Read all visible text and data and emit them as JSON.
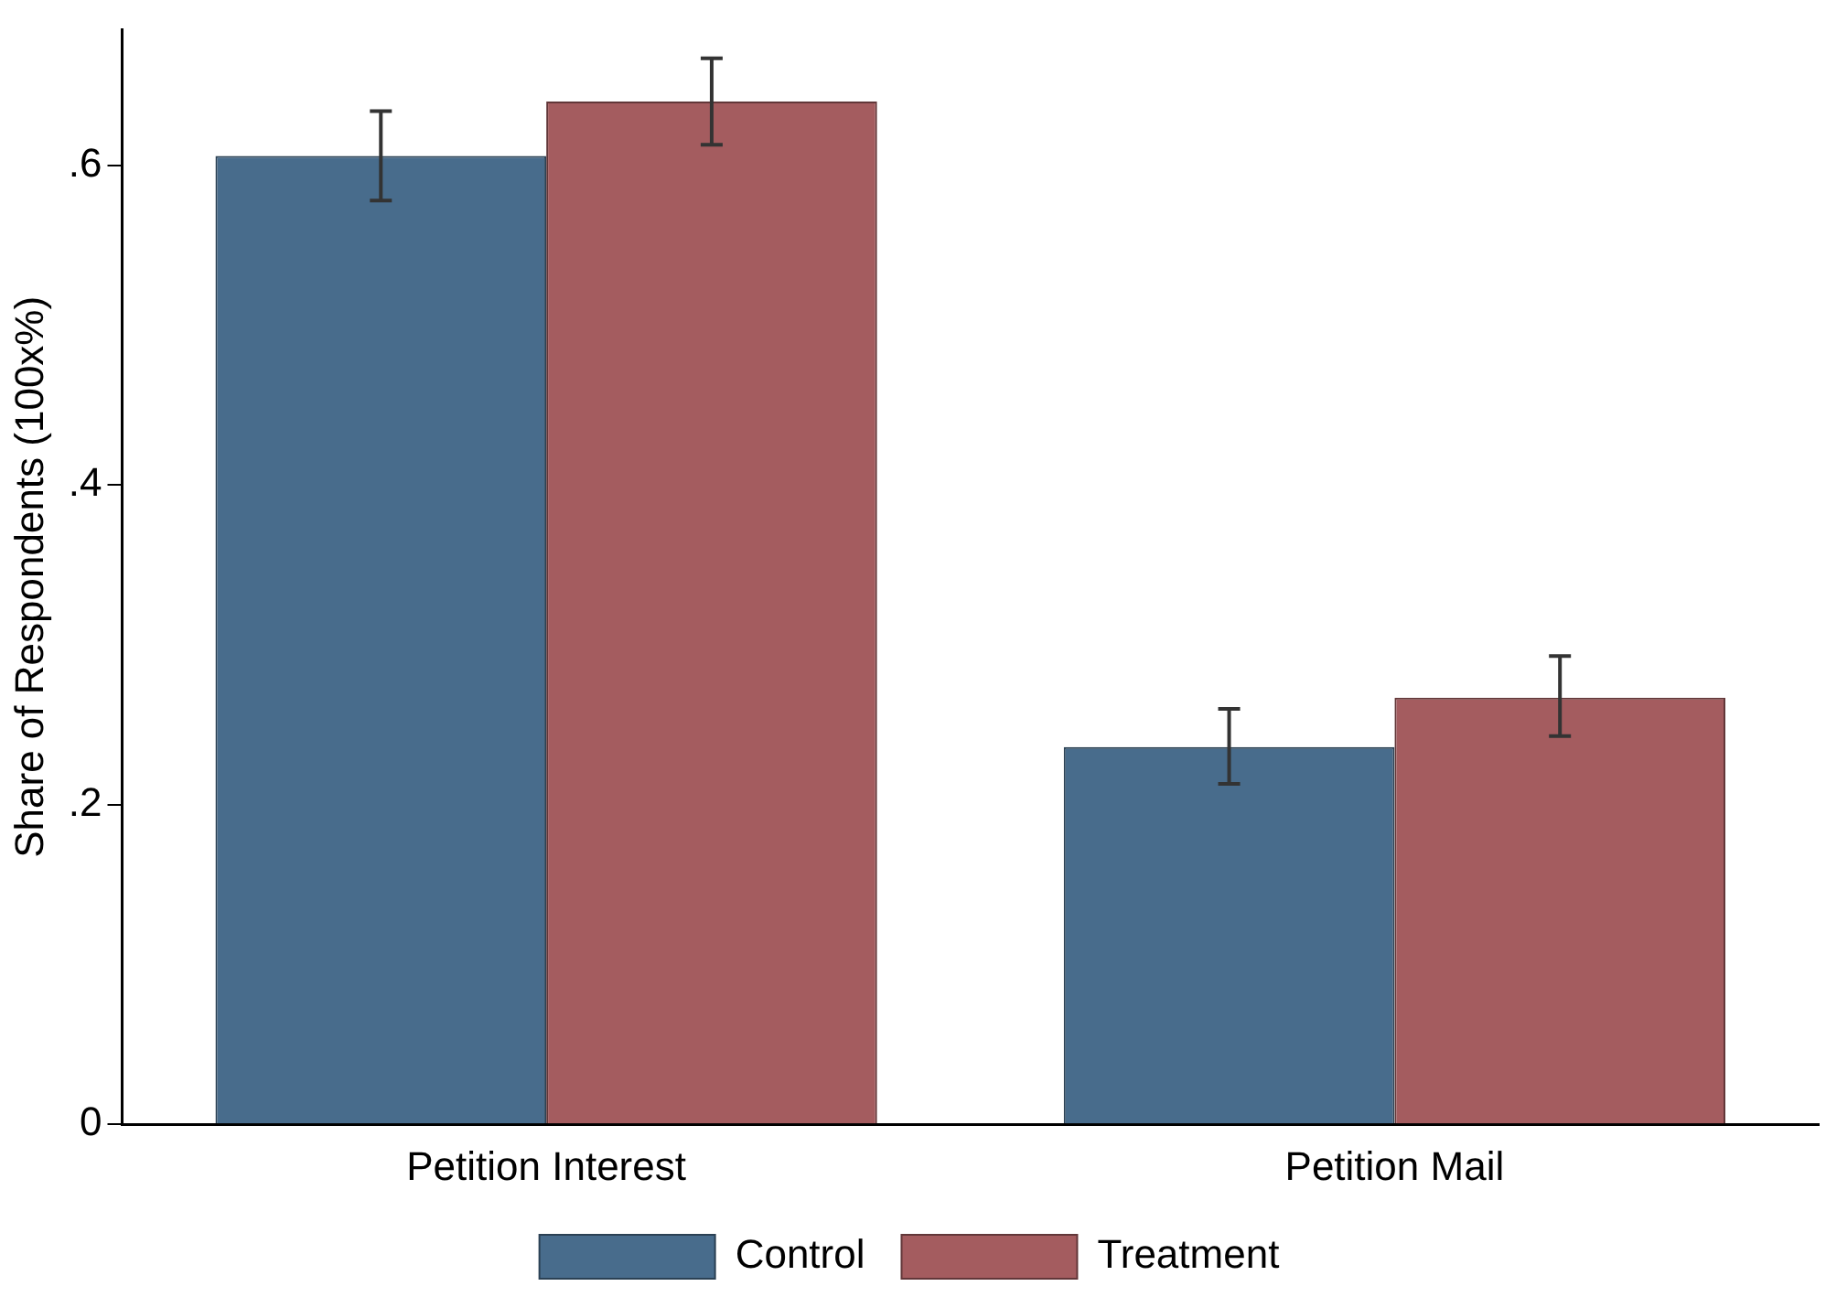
{
  "chart_data": {
    "type": "bar",
    "ylabel": "Share of Respondents (100x%)",
    "categories": [
      "Petition Interest",
      "Petition Mail"
    ],
    "series": [
      {
        "name": "Control",
        "color": "#486c8c",
        "values": [
          0.606,
          0.236
        ],
        "errors": [
          [
            0.578,
            0.634
          ],
          [
            0.213,
            0.26
          ]
        ]
      },
      {
        "name": "Treatment",
        "color": "#a45c5f",
        "values": [
          0.64,
          0.267
        ],
        "errors": [
          [
            0.613,
            0.667
          ],
          [
            0.243,
            0.293
          ]
        ]
      }
    ],
    "ylim": [
      0,
      0.685
    ],
    "yticks": [
      0,
      {
        "value": 0.2,
        "label": ".2"
      },
      {
        "value": 0.4,
        "label": ".4"
      },
      {
        "value": 0.6,
        "label": ".6"
      }
    ],
    "grid": false,
    "legend": "bottom"
  }
}
